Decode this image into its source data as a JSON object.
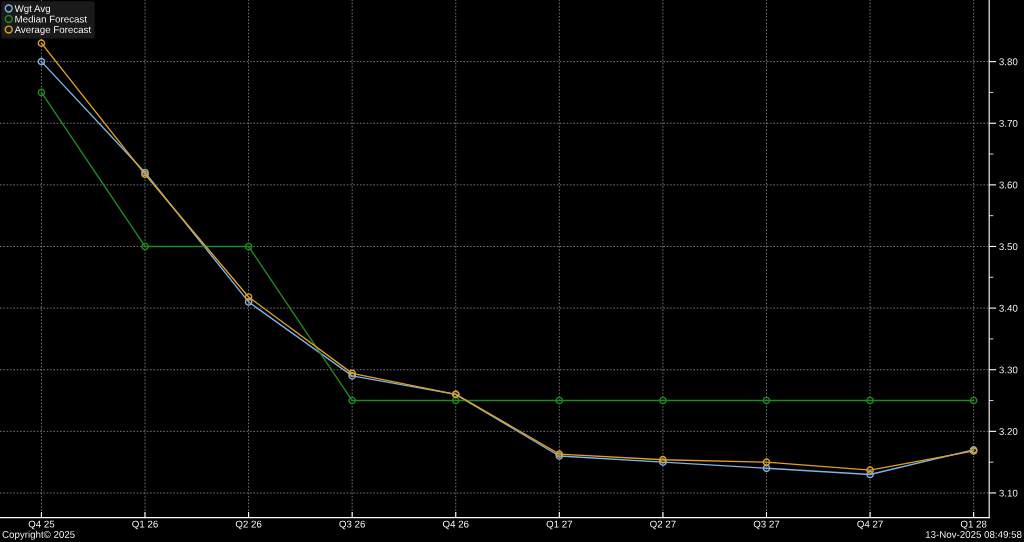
{
  "chart_data": {
    "type": "line",
    "categories": [
      "Q4 25",
      "Q1 26",
      "Q2 26",
      "Q3 26",
      "Q4 26",
      "Q1 27",
      "Q2 27",
      "Q3 27",
      "Q4 27",
      "Q1 28"
    ],
    "series": [
      {
        "name": "Wgt Avg",
        "color": "#7fb2e5",
        "values": [
          3.8,
          3.62,
          3.41,
          3.29,
          3.26,
          3.16,
          3.15,
          3.14,
          3.13,
          3.17
        ]
      },
      {
        "name": "Median Forecast",
        "color": "#1f8a1f",
        "values": [
          3.75,
          3.5,
          3.5,
          3.25,
          3.25,
          3.25,
          3.25,
          3.25,
          3.25,
          3.25
        ]
      },
      {
        "name": "Average Forecast",
        "color": "#e0a020",
        "values": [
          3.83,
          3.617,
          3.418,
          3.294,
          3.26,
          3.163,
          3.154,
          3.15,
          3.137,
          3.168
        ]
      }
    ],
    "ylim": [
      3.06,
      3.9
    ],
    "yticks": [
      {
        "value": 3.1,
        "label": "3.10"
      },
      {
        "value": 3.2,
        "label": "3.20"
      },
      {
        "value": 3.3,
        "label": "3.30"
      },
      {
        "value": 3.4,
        "label": "3.40"
      },
      {
        "value": 3.5,
        "label": "3.50"
      },
      {
        "value": 3.6,
        "label": "3.60"
      },
      {
        "value": 3.7,
        "label": "3.70"
      },
      {
        "value": 3.8,
        "label": "3.80"
      }
    ],
    "grid": true,
    "legend": "top left",
    "marker": "circle",
    "line_style": "solid",
    "annotations": [
      "Copyright© 2025",
      "13-Nov-2025 08:49:58"
    ]
  }
}
